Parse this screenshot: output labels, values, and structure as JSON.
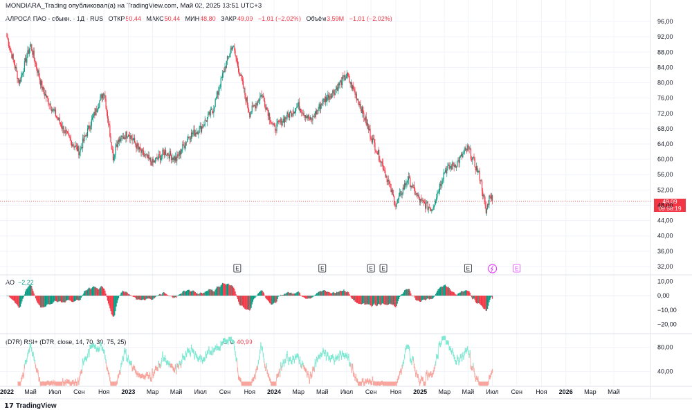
{
  "attribution": "MONDIARA_Trading опубликовал(а) на TradingView.com, Май 02, 2025 13:51 UTC+3",
  "legend": {
    "symbol": "АЛРОСА ПАО - обыкн. · 1Д · RUS",
    "open_label": "ОТКР",
    "open": "50,44",
    "high_label": "МАКС",
    "high": "50,44",
    "low_label": "МИН",
    "low": "48,80",
    "close_label": "ЗАКР",
    "close": "49,09",
    "change": "−1,01 (−2,02%)",
    "volume_label": "Объём",
    "volume": "3,59M",
    "volume_change": "−1,01 (−2,02%)"
  },
  "last_price": {
    "value": "49,09",
    "countdown": "09:58:19"
  },
  "ao_panel": {
    "label": "AO",
    "value": "−2,22"
  },
  "rsi_panel": {
    "label": "(D7R) RSI+ (D7R, close, 14, 70, 30, 75, 25)",
    "flags": "⊘ ⊘",
    "value": "40,99"
  },
  "earnings_marker": "E",
  "logo": "TradingView",
  "colors": {
    "up": "#089981",
    "down": "#f23645",
    "rsi_up": "#7fe8d2",
    "rsi_down": "#f7a59c",
    "earnings_future": "#e040fb"
  },
  "chart_data": [
    {
      "type": "candlestick",
      "title": "АЛРОСА ПАО - обыкн.",
      "x_ticks": [
        "2022",
        "Май",
        "Июл",
        "Сен",
        "Ноя",
        "2023",
        "Мар",
        "Май",
        "Июл",
        "Сен",
        "Ноя",
        "2024",
        "Мар",
        "Май",
        "Июл",
        "Сен",
        "Ноя",
        "2025",
        "Мар",
        "Май",
        "Июл",
        "Сен",
        "Ноя",
        "2026",
        "Мар",
        "Май"
      ],
      "y_ticks": [
        "96,00",
        "92,00",
        "88,00",
        "84,00",
        "80,00",
        "76,00",
        "72,00",
        "68,00",
        "64,00",
        "60,00",
        "56,00",
        "52,00",
        "48,00",
        "44,00",
        "40,00",
        "36,00",
        "32,00"
      ],
      "ylim": [
        30,
        98
      ],
      "close_path": [
        [
          "2022-01",
          92
        ],
        [
          "2022-02",
          80
        ],
        [
          "2022-03",
          90
        ],
        [
          "2022-04",
          78
        ],
        [
          "2022-05",
          72
        ],
        [
          "2022-06",
          66
        ],
        [
          "2022-07",
          62
        ],
        [
          "2022-08",
          70
        ],
        [
          "2022-09",
          78
        ],
        [
          "2022-09-25",
          60
        ],
        [
          "2022-10",
          64
        ],
        [
          "2022-11",
          67
        ],
        [
          "2022-12",
          62
        ],
        [
          "2023-01",
          59
        ],
        [
          "2023-02",
          62
        ],
        [
          "2023-03",
          60
        ],
        [
          "2023-04",
          66
        ],
        [
          "2023-05",
          68
        ],
        [
          "2023-06",
          73
        ],
        [
          "2023-07",
          84
        ],
        [
          "2023-07-20",
          90
        ],
        [
          "2023-08",
          85
        ],
        [
          "2023-09",
          72
        ],
        [
          "2023-10",
          77
        ],
        [
          "2023-11",
          68
        ],
        [
          "2023-12",
          71
        ],
        [
          "2024-01",
          74
        ],
        [
          "2024-02",
          70
        ],
        [
          "2024-03",
          75
        ],
        [
          "2024-04",
          78
        ],
        [
          "2024-05",
          82
        ],
        [
          "2024-06",
          75
        ],
        [
          "2024-07",
          66
        ],
        [
          "2024-08",
          58
        ],
        [
          "2024-09",
          48
        ],
        [
          "2024-10",
          55
        ],
        [
          "2024-11",
          49
        ],
        [
          "2024-12",
          47
        ],
        [
          "2025-01",
          57
        ],
        [
          "2025-02",
          59
        ],
        [
          "2025-03",
          63
        ],
        [
          "2025-04",
          55
        ],
        [
          "2025-04-15",
          46
        ],
        [
          "2025-04-25",
          51
        ],
        [
          "2025-05-02",
          49.09
        ]
      ],
      "last_close": 49.09,
      "earnings_events": [
        "2023-08",
        "2024-03",
        "2024-07",
        "2024-08",
        "2025-03"
      ],
      "future_earnings_events": [
        "2025-05",
        "2025-07"
      ]
    },
    {
      "type": "bar",
      "title": "AO",
      "y_ticks": [
        "10,00",
        "0,00",
        "−10,00",
        "−20,00"
      ],
      "ylim": [
        -26,
        14
      ],
      "last_value": -2.22
    },
    {
      "type": "line",
      "title": "(D7R) RSI+",
      "y_ticks": [
        "80,00",
        "40,00"
      ],
      "ylim": [
        18,
        100
      ],
      "last_value": 40.99
    }
  ]
}
